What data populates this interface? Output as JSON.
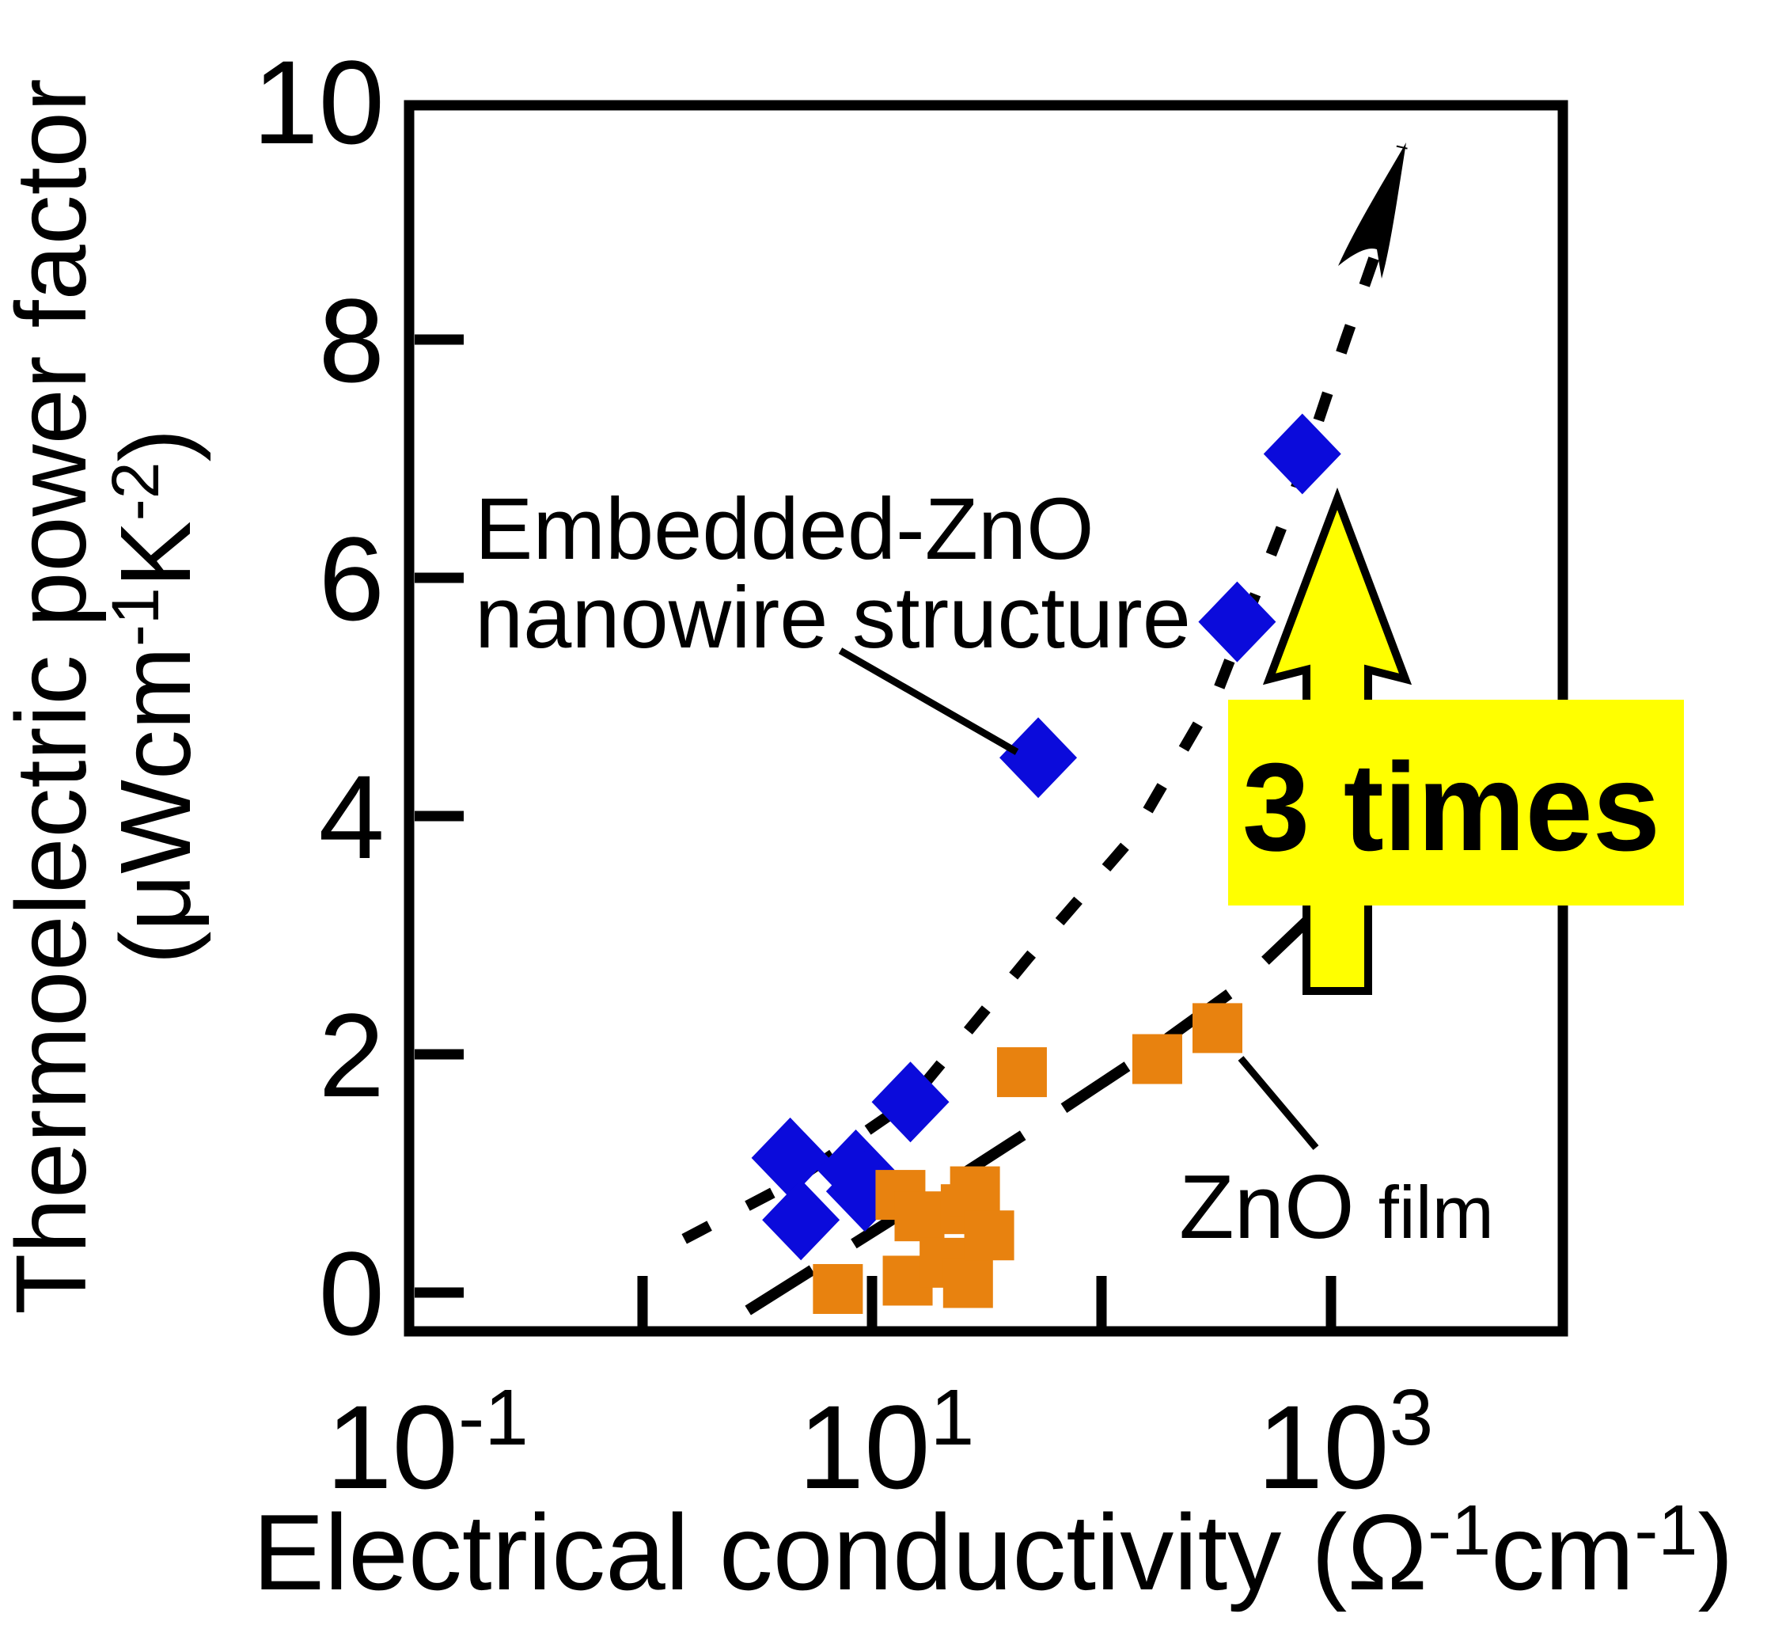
{
  "figure": {
    "background": "#FFFFFF",
    "annotations": {
      "nanowire_label_line1": "Embedded-ZnO",
      "nanowire_label_line2": "nanowire structure",
      "film_label_main": "ZnO",
      "film_label_sub": "film",
      "times_badge": "3 times"
    },
    "colors": {
      "nanowire_series": "#0B0BDB",
      "film_series": "#E8820F",
      "badge_bg": "#FFFF00",
      "arrow_fill": "#FFFF00",
      "ink": "#000000"
    }
  },
  "chart_data": {
    "type": "scatter",
    "title": "",
    "xlabel_parts": {
      "pre": "Electrical conductivity (Ω",
      "sup1": "-1",
      "mid": "cm",
      "sup2": "-1",
      "post": ")"
    },
    "ylabel_line1": "Thermoelectric power factor",
    "ylabel_unit_parts": {
      "pre": "(μWcm",
      "sup1": "-1",
      "mid": "K",
      "sup2": "-2",
      "post": ")"
    },
    "x_axis": {
      "scale": "log",
      "range": [
        0.1,
        10000
      ],
      "tick_values": [
        1,
        10,
        100,
        1000
      ],
      "labeled_ticks": [
        {
          "base": "10",
          "sup": "-1",
          "value": 0.1
        },
        {
          "base": "10",
          "sup": "1",
          "value": 10
        },
        {
          "base": "10",
          "sup": "3",
          "value": 1000
        }
      ]
    },
    "y_axis": {
      "scale": "linear",
      "range": [
        -0.33,
        10
      ],
      "tick_values": [
        0,
        2,
        4,
        6,
        8
      ],
      "labeled_ticks": [
        {
          "label": "10",
          "value": 10
        },
        {
          "label": "8",
          "value": 8
        },
        {
          "label": "6",
          "value": 6
        },
        {
          "label": "4",
          "value": 4
        },
        {
          "label": "2",
          "value": 2
        },
        {
          "label": "0",
          "value": 0
        }
      ]
    },
    "series": [
      {
        "name": "Embedded-ZnO nanowire structure",
        "marker": "diamond",
        "color": "#0B0BDB",
        "points": [
          [
            4.4,
            1.13
          ],
          [
            4.9,
            0.61
          ],
          [
            8.5,
            1.03
          ],
          [
            9.3,
            0.85
          ],
          [
            14.7,
            1.6
          ],
          [
            53,
            4.49
          ],
          [
            390,
            5.63
          ],
          [
            750,
            7.04
          ]
        ]
      },
      {
        "name": "ZnO film",
        "marker": "square",
        "color": "#E8820F",
        "points": [
          [
            7.1,
            0.03
          ],
          [
            13.3,
            0.82
          ],
          [
            14.3,
            0.1
          ],
          [
            16.1,
            0.64
          ],
          [
            20.7,
            0.25
          ],
          [
            25.6,
            0.7
          ],
          [
            26.2,
            0.08
          ],
          [
            28.1,
            0.85
          ],
          [
            32.4,
            0.48
          ],
          [
            45,
            1.85
          ],
          [
            175,
            1.96
          ],
          [
            320,
            2.22
          ]
        ]
      }
    ],
    "trend_lines": [
      {
        "series": "Embedded-ZnO nanowire structure",
        "style": "short-dash",
        "arrowhead": true,
        "points": [
          [
            1.52,
            0.45
          ],
          [
            4.45,
            0.92
          ],
          [
            14.7,
            1.61
          ],
          [
            48,
            2.81
          ],
          [
            135,
            3.81
          ],
          [
            324,
            5.07
          ],
          [
            662,
            6.6
          ],
          [
            1153,
            7.99
          ],
          [
            1690,
            8.91
          ],
          [
            2042,
            9.62
          ]
        ]
      },
      {
        "series": "ZnO film",
        "style": "long-dash",
        "arrowhead": false,
        "points": [
          [
            2.88,
            -0.15
          ],
          [
            11.5,
            0.58
          ],
          [
            48,
            1.35
          ],
          [
            158,
            2.01
          ],
          [
            380,
            2.54
          ],
          [
            807,
            3.14
          ]
        ]
      }
    ],
    "grid": false,
    "legend": "inline annotations with leader lines"
  }
}
